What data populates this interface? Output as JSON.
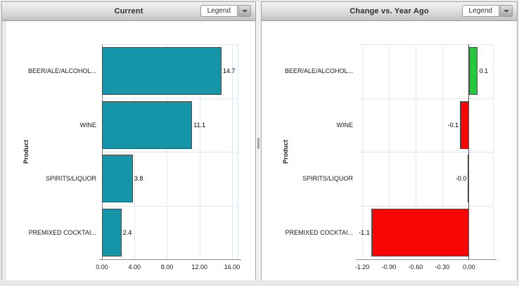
{
  "panels": [
    {
      "title": "Current",
      "legend_label": "Legend"
    },
    {
      "title": "Change vs. Year Ago",
      "legend_label": "Legend"
    }
  ],
  "chart_data": [
    {
      "type": "bar",
      "orientation": "horizontal",
      "title": "Current",
      "ylabel": "Product",
      "categories": [
        "BEER/ALE/ALCOHOL...",
        "WINE",
        "SPIRITS/LIQUOR",
        "PREMIXED COCKTAI..."
      ],
      "values": [
        14.7,
        11.1,
        3.8,
        2.4
      ],
      "value_labels": [
        "14.7",
        "11.1",
        "3.8",
        "2.4"
      ],
      "bar_colors": [
        "#1694A8",
        "#1694A8",
        "#1694A8",
        "#1694A8"
      ],
      "xlim": [
        0,
        16.7
      ],
      "xticks": [
        0,
        4,
        8,
        12,
        16
      ],
      "xtick_labels": [
        "0.00",
        "4.00",
        "8.00",
        "12.00",
        "16.00"
      ],
      "grid": true,
      "legend_position": "collapsed-dropdown"
    },
    {
      "type": "bar",
      "orientation": "horizontal",
      "title": "Change vs. Year Ago",
      "ylabel": "Product",
      "categories": [
        "BEER/ALE/ALCOHOL...",
        "WINE",
        "SPIRITS/LIQUOR",
        "PREMIXED COCKTAI..."
      ],
      "values": [
        0.1,
        -0.1,
        -0.0,
        -1.1
      ],
      "value_labels": [
        "0.1",
        "-0.1",
        "-0.0",
        "-1.1"
      ],
      "bar_colors": [
        "#28C740",
        "#FA0505",
        "#FA0505",
        "#FA0505"
      ],
      "xlim": [
        -1.24,
        0.27
      ],
      "xticks": [
        -1.2,
        -0.9,
        -0.6,
        -0.3,
        0
      ],
      "xtick_labels": [
        "-1.20",
        "-0.90",
        "-0.60",
        "-0.30",
        "0.00"
      ],
      "grid": true,
      "legend_position": "collapsed-dropdown"
    }
  ]
}
